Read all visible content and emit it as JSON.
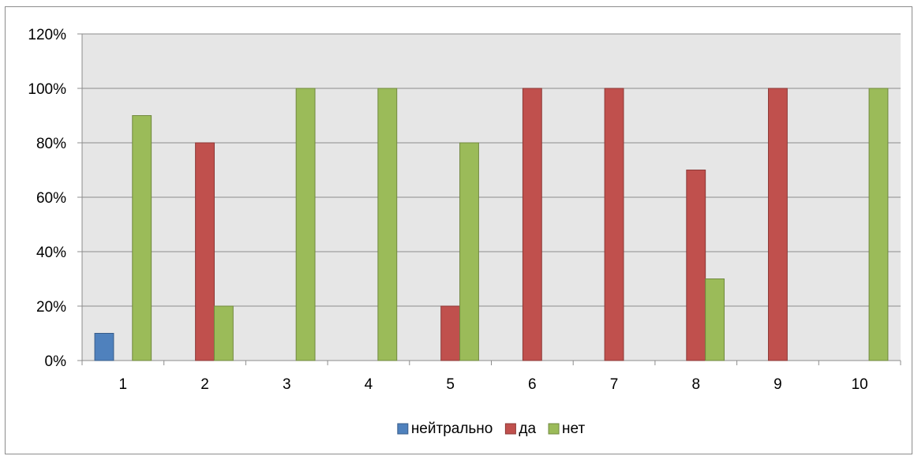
{
  "chart_data": {
    "type": "bar",
    "categories": [
      "1",
      "2",
      "3",
      "4",
      "5",
      "6",
      "7",
      "8",
      "9",
      "10"
    ],
    "series": [
      {
        "name": "нейтрально",
        "color": "#4f81bd",
        "stroke": "#385d8a",
        "values": [
          10,
          0,
          0,
          0,
          0,
          0,
          0,
          0,
          0,
          0
        ]
      },
      {
        "name": "да",
        "color": "#c0504d",
        "stroke": "#8c3836",
        "values": [
          0,
          80,
          0,
          0,
          20,
          100,
          100,
          70,
          100,
          0
        ]
      },
      {
        "name": "нет",
        "color": "#9bbb59",
        "stroke": "#71893f",
        "values": [
          90,
          20,
          100,
          100,
          80,
          0,
          0,
          30,
          0,
          100
        ]
      }
    ],
    "y_ticks": [
      "0%",
      "20%",
      "40%",
      "60%",
      "80%",
      "100%",
      "120%"
    ],
    "ylim": [
      0,
      120
    ],
    "grid": true,
    "legend_position": "bottom",
    "plot_background": "#e6e6e6",
    "title": "",
    "xlabel": "",
    "ylabel": ""
  }
}
